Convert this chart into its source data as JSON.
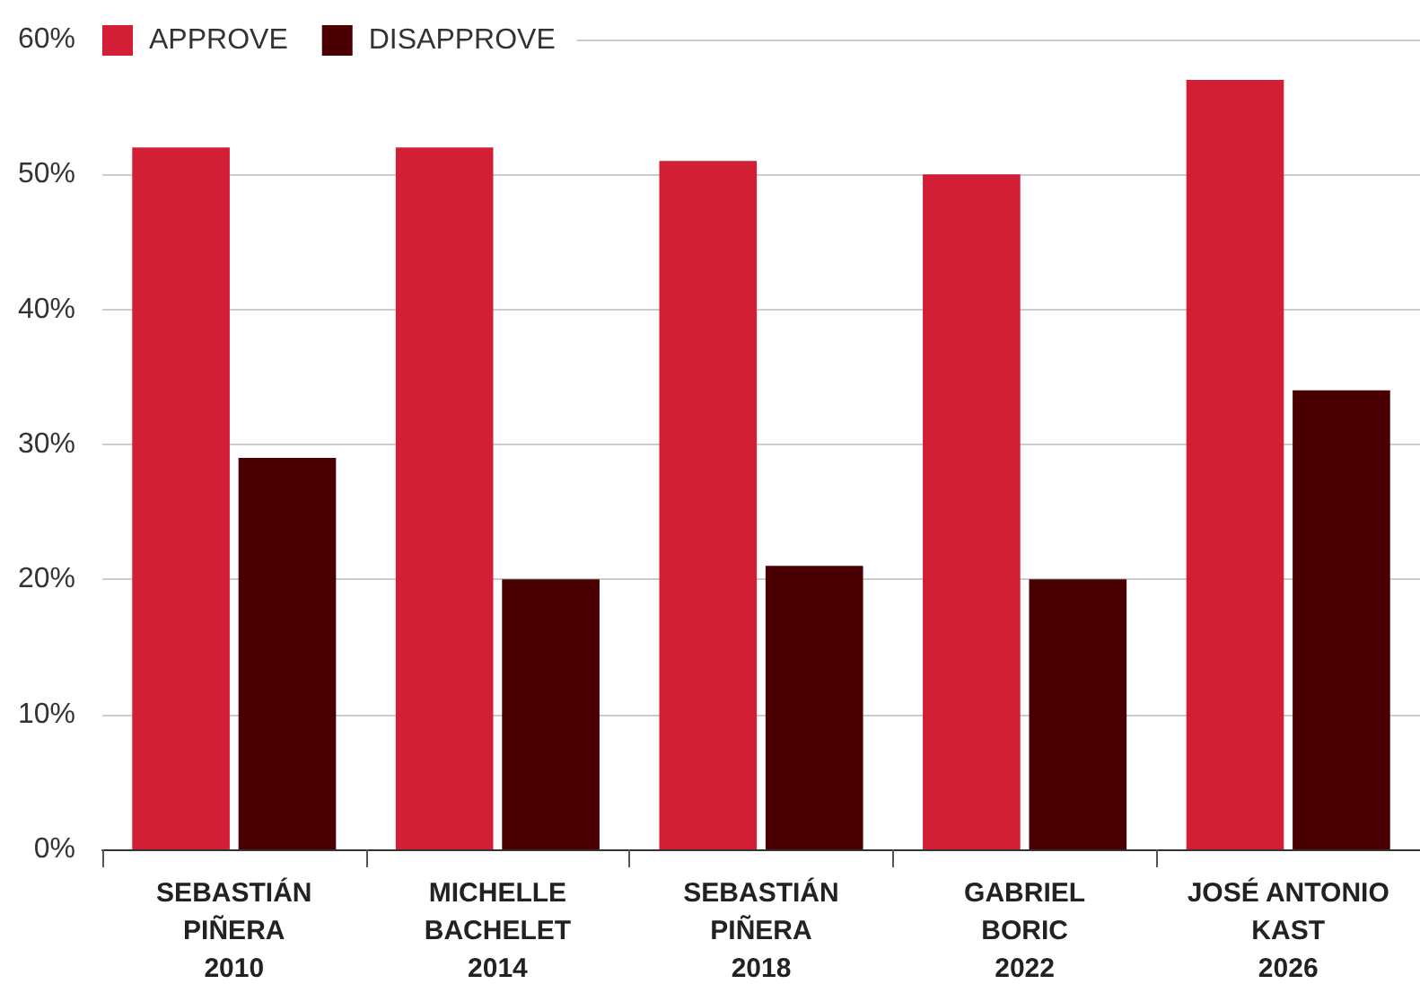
{
  "chart_data": {
    "type": "bar",
    "categories": [
      "SEBASTIÁN\nPIÑERA\n2010",
      "MICHELLE\nBACHELET\n2014",
      "SEBASTIÁN\nPIÑERA\n2018",
      "GABRIEL\nBORIC\n2022",
      "JOSÉ ANTONIO\nKAST\n2026"
    ],
    "series": [
      {
        "name": "APPROVE",
        "color": "#d31f36",
        "values": [
          52,
          52,
          51,
          50,
          57
        ]
      },
      {
        "name": "DISAPPROVE",
        "color": "#4a0002",
        "values": [
          29,
          20,
          21,
          20,
          34
        ]
      }
    ],
    "ylim": [
      0,
      60
    ],
    "yticks": [
      {
        "value": 0,
        "label": "0%"
      },
      {
        "value": 10,
        "label": "10%"
      },
      {
        "value": 20,
        "label": "20%"
      },
      {
        "value": 30,
        "label": "30%"
      },
      {
        "value": 40,
        "label": "40%"
      },
      {
        "value": 50,
        "label": "50%"
      },
      {
        "value": 60,
        "label": "60%"
      }
    ],
    "grid": "y",
    "legend": "top left"
  }
}
